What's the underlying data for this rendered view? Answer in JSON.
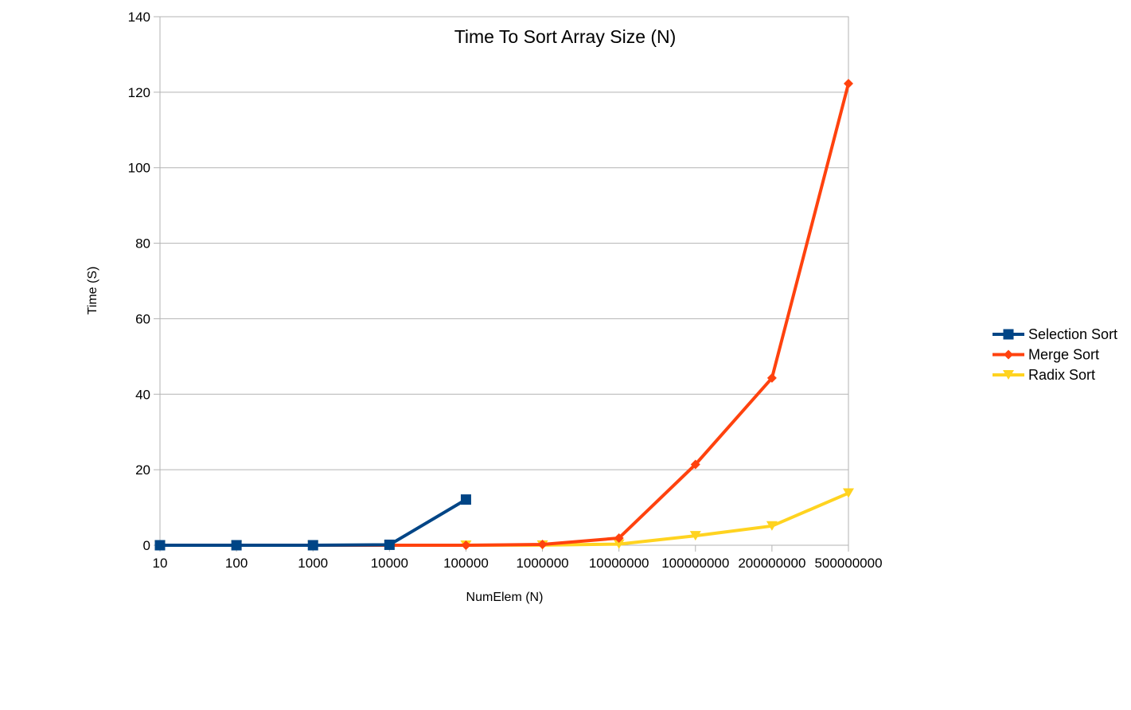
{
  "chart_data": {
    "type": "line",
    "title": "Time To Sort Array Size (N)",
    "xlabel": "NumElem (N)",
    "ylabel": "Time (S)",
    "categories": [
      "10",
      "100",
      "1000",
      "10000",
      "100000",
      "1000000",
      "10000000",
      "100000000",
      "200000000",
      "500000000"
    ],
    "ylim": [
      0,
      140
    ],
    "yticks": [
      0,
      20,
      40,
      60,
      80,
      100,
      120,
      140
    ],
    "grid": true,
    "legend_position": "right",
    "series": [
      {
        "name": "Selection Sort",
        "color": "#004586",
        "marker": "square",
        "values": [
          0,
          0,
          0,
          0.12,
          12.1,
          null,
          null,
          null,
          null,
          null
        ]
      },
      {
        "name": "Merge Sort",
        "color": "#ff420e",
        "marker": "diamond",
        "values": [
          0,
          0,
          0,
          0,
          0,
          0.2,
          1.9,
          21.4,
          44.3,
          122.3
        ]
      },
      {
        "name": "Radix Sort",
        "color": "#ffd320",
        "marker": "triangle-down",
        "values": [
          0,
          0,
          0,
          0,
          0,
          0.03,
          0.3,
          2.5,
          5.1,
          13.8
        ]
      }
    ]
  }
}
